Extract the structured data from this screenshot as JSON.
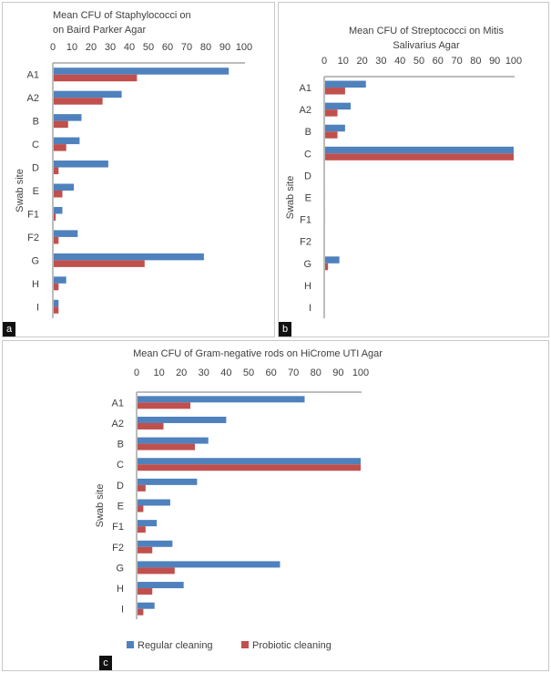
{
  "colors": {
    "regular": "#4F81BD",
    "probiotic": "#C0504D",
    "axis": "#a6a6a6",
    "text": "#404040"
  },
  "legend": {
    "regular_label": "Regular cleaning",
    "probiotic_label": "Probiotic cleaning"
  },
  "chart_data": [
    {
      "type": "bar",
      "orientation": "horizontal",
      "panel_label": "a",
      "title_lines": [
        "Mean CFU of Staphylococci on",
        "on Baird Parker Agar"
      ],
      "ylabel": "Swab site",
      "xlim": [
        0,
        100
      ],
      "xticks": [
        0,
        10,
        20,
        30,
        40,
        50,
        60,
        70,
        80,
        90,
        100
      ],
      "categories": [
        "A1",
        "A2",
        "B",
        "C",
        "D",
        "E",
        "F1",
        "F2",
        "G",
        "H",
        "I"
      ],
      "series": [
        {
          "name": "Regular cleaning",
          "values": [
            92,
            36,
            15,
            14,
            29,
            11,
            5,
            13,
            79,
            7,
            3
          ]
        },
        {
          "name": "Probiotic cleaning",
          "values": [
            44,
            26,
            8,
            7,
            3,
            5,
            1.5,
            3,
            48,
            3,
            3
          ]
        }
      ]
    },
    {
      "type": "bar",
      "orientation": "horizontal",
      "panel_label": "b",
      "title_lines": [
        "Mean CFU of Streptococci on Mitis",
        "Salivarius Agar"
      ],
      "ylabel": "Swab site",
      "xlim": [
        0,
        100
      ],
      "xticks": [
        0,
        10,
        20,
        30,
        40,
        50,
        60,
        70,
        80,
        90,
        100
      ],
      "categories": [
        "A1",
        "A2",
        "B",
        "C",
        "D",
        "E",
        "F1",
        "F2",
        "G",
        "H",
        "I"
      ],
      "series": [
        {
          "name": "Regular cleaning",
          "values": [
            22,
            14,
            11,
            100,
            0,
            0.5,
            0.5,
            0,
            8,
            0,
            0
          ]
        },
        {
          "name": "Probiotic cleaning",
          "values": [
            11,
            7,
            7,
            100,
            0,
            0,
            0,
            0,
            2,
            0,
            0
          ]
        }
      ]
    },
    {
      "type": "bar",
      "orientation": "horizontal",
      "panel_label": "c",
      "title_lines": [
        "Mean CFU  of Gram-negative rods on  HiCrome  UTI Agar"
      ],
      "ylabel": "Swab site",
      "xlim": [
        0,
        100
      ],
      "xticks": [
        0,
        10,
        20,
        30,
        40,
        50,
        60,
        70,
        80,
        90,
        100
      ],
      "categories": [
        "A1",
        "A2",
        "B",
        "C",
        "D",
        "E",
        "F1",
        "F2",
        "G",
        "H",
        "I"
      ],
      "series": [
        {
          "name": "Regular cleaning",
          "values": [
            75,
            40,
            32,
            100,
            27,
            15,
            9,
            16,
            64,
            21,
            8
          ]
        },
        {
          "name": "Probiotic cleaning",
          "values": [
            24,
            12,
            26,
            100,
            4,
            3,
            4,
            7,
            17,
            7,
            3
          ]
        }
      ]
    }
  ]
}
